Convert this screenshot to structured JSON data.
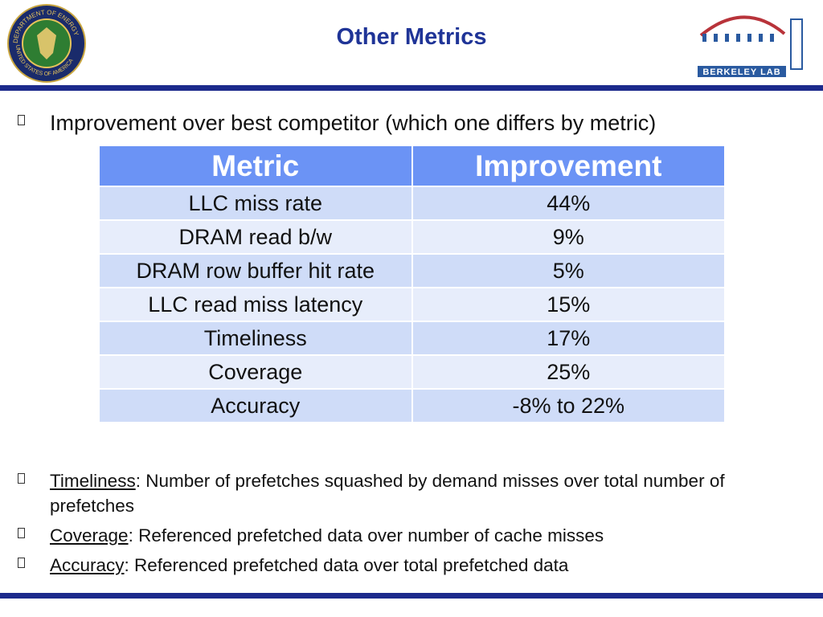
{
  "header": {
    "title": "Other Metrics",
    "seal_text": [
      "DEPARTMENT OF ENERGY",
      "UNITED STATES OF AMERICA"
    ],
    "logo_text": "BERKELEY LAB"
  },
  "intro": "Improvement over best competitor (which one differs by metric)",
  "table": {
    "header": [
      "Metric",
      "Improvement"
    ],
    "rows": [
      [
        "LLC miss rate",
        "44%"
      ],
      [
        "DRAM read b/w",
        "9%"
      ],
      [
        "DRAM row buffer hit rate",
        "5%"
      ],
      [
        "LLC read miss latency",
        "15%"
      ],
      [
        "Timeliness",
        "17%"
      ],
      [
        "Coverage",
        "25%"
      ],
      [
        "Accuracy",
        "-8% to 22%"
      ]
    ]
  },
  "definitions": [
    {
      "term": "Timeliness",
      "text": ": Number of prefetches squashed by demand misses over total number of prefetches"
    },
    {
      "term": "Coverage",
      "text": ": Referenced prefetched data over number of cache misses"
    },
    {
      "term": "Accuracy",
      "text": ": Referenced prefetched data over total prefetched data"
    }
  ]
}
